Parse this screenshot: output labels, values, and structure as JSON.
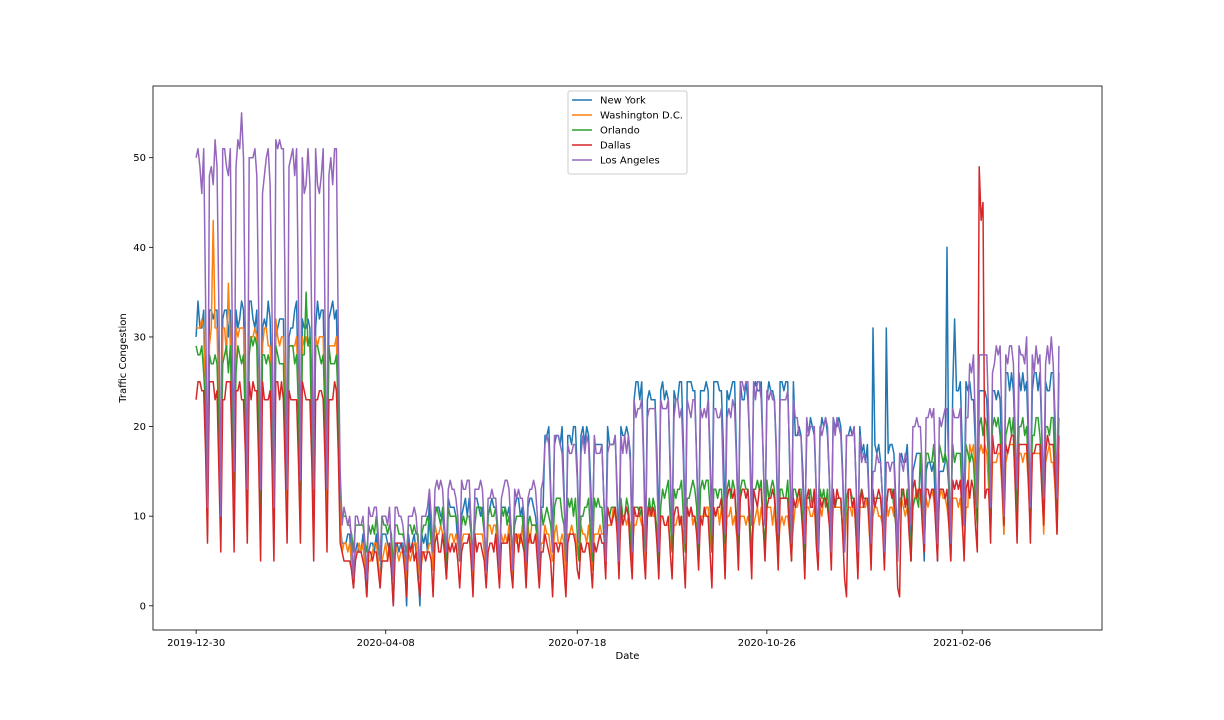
{
  "chart_data": {
    "type": "line",
    "title": "",
    "xlabel": "Date",
    "ylabel": "Traffic Congestion",
    "x_start": "2019-12-30",
    "x_end": "2021-03-29",
    "ylim": [
      -2.7,
      58
    ],
    "xticks": [
      "2019-12-30",
      "2020-04-08",
      "2020-07-18",
      "2020-10-26",
      "2021-02-06"
    ],
    "yticks": [
      0,
      10,
      20,
      30,
      40,
      50
    ],
    "grid": false,
    "legend_position": "top-center",
    "series": [
      {
        "name": "New York",
        "color": "#1f77b4",
        "phases": [
          {
            "start": "2019-12-30",
            "weekday": 32,
            "weekend": 9
          },
          {
            "start": "2020-03-16",
            "weekday": 7,
            "weekend": 1
          },
          {
            "start": "2020-05-01",
            "weekday": 11,
            "weekend": 4
          },
          {
            "start": "2020-07-01",
            "weekday": 19,
            "weekend": 7
          },
          {
            "start": "2020-08-15",
            "weekday": 24,
            "weekend": 8
          },
          {
            "start": "2020-11-10",
            "weekday": 20,
            "weekend": 7
          },
          {
            "start": "2020-12-15",
            "weekday": 17,
            "weekend": 5
          },
          {
            "start": "2021-01-10",
            "weekday": 16,
            "weekend": 6
          },
          {
            "start": "2021-02-01",
            "weekday": 24,
            "weekend": 9
          },
          {
            "start": "2021-03-01",
            "weekday": 25,
            "weekend": 10
          }
        ],
        "spikes": [
          {
            "date": "2020-12-21",
            "value": 31
          },
          {
            "date": "2020-12-28",
            "value": 31
          },
          {
            "date": "2021-01-29",
            "value": 40
          },
          {
            "date": "2021-02-02",
            "value": 32
          }
        ]
      },
      {
        "name": "Washington D.C.",
        "color": "#ff7f0e",
        "phases": [
          {
            "start": "2019-12-30",
            "weekday": 30,
            "weekend": 10
          },
          {
            "start": "2020-03-16",
            "weekday": 6,
            "weekend": 3
          },
          {
            "start": "2020-05-01",
            "weekday": 8,
            "weekend": 4
          },
          {
            "start": "2020-08-01",
            "weekday": 10,
            "weekend": 6
          },
          {
            "start": "2020-11-10",
            "weekday": 11,
            "weekend": 7
          },
          {
            "start": "2021-01-10",
            "weekday": 12,
            "weekend": 6
          },
          {
            "start": "2021-02-10",
            "weekday": 17,
            "weekend": 9
          }
        ],
        "spikes": [
          {
            "date": "2020-01-08",
            "value": 43
          },
          {
            "date": "2020-01-16",
            "value": 36
          }
        ]
      },
      {
        "name": "Orlando",
        "color": "#2ca02c",
        "phases": [
          {
            "start": "2019-12-30",
            "weekday": 28,
            "weekend": 12
          },
          {
            "start": "2020-03-16",
            "weekday": 9,
            "weekend": 5
          },
          {
            "start": "2020-05-01",
            "weekday": 10,
            "weekend": 5
          },
          {
            "start": "2020-07-01",
            "weekday": 11,
            "weekend": 5
          },
          {
            "start": "2020-09-01",
            "weekday": 13,
            "weekend": 6
          },
          {
            "start": "2020-11-15",
            "weekday": 12,
            "weekend": 6
          },
          {
            "start": "2021-01-15",
            "weekday": 17,
            "weekend": 8
          },
          {
            "start": "2021-02-15",
            "weekday": 20,
            "weekend": 10
          }
        ],
        "spikes": [
          {
            "date": "2020-02-26",
            "value": 35
          }
        ]
      },
      {
        "name": "Dallas",
        "color": "#d62728",
        "phases": [
          {
            "start": "2019-12-30",
            "weekday": 24,
            "weekend": 6
          },
          {
            "start": "2020-03-16",
            "weekday": 6,
            "weekend": 1
          },
          {
            "start": "2020-05-01",
            "weekday": 7,
            "weekend": 2
          },
          {
            "start": "2020-08-01",
            "weekday": 10,
            "weekend": 3
          },
          {
            "start": "2020-10-01",
            "weekday": 12,
            "weekend": 4
          },
          {
            "start": "2020-12-01",
            "weekday": 12,
            "weekend": 3
          },
          {
            "start": "2021-01-10",
            "weekday": 13,
            "weekend": 5
          },
          {
            "start": "2021-02-20",
            "weekday": 18,
            "weekend": 8
          }
        ],
        "spikes": [
          {
            "date": "2020-12-07",
            "value": 1
          },
          {
            "date": "2021-01-04",
            "value": 1
          },
          {
            "date": "2021-02-15",
            "value": 49
          },
          {
            "date": "2021-02-16",
            "value": 43
          },
          {
            "date": "2021-02-17",
            "value": 45
          }
        ]
      },
      {
        "name": "Los Angeles",
        "color": "#9467bd",
        "phases": [
          {
            "start": "2019-12-30",
            "weekday": 49,
            "weekend": 12
          },
          {
            "start": "2020-03-16",
            "weekday": 10,
            "weekend": 4
          },
          {
            "start": "2020-05-01",
            "weekday": 13,
            "weekend": 5
          },
          {
            "start": "2020-07-01",
            "weekday": 18,
            "weekend": 6
          },
          {
            "start": "2020-08-15",
            "weekday": 22,
            "weekend": 7
          },
          {
            "start": "2020-10-10",
            "weekday": 24,
            "weekend": 8
          },
          {
            "start": "2020-11-10",
            "weekday": 20,
            "weekend": 6
          },
          {
            "start": "2020-12-15",
            "weekday": 16,
            "weekend": 6
          },
          {
            "start": "2021-01-10",
            "weekday": 21,
            "weekend": 8
          },
          {
            "start": "2021-02-10",
            "weekday": 28,
            "weekend": 12
          }
        ],
        "spikes": [
          {
            "date": "2020-01-23",
            "value": 55
          },
          {
            "date": "2020-02-12",
            "value": 52
          }
        ]
      }
    ]
  }
}
